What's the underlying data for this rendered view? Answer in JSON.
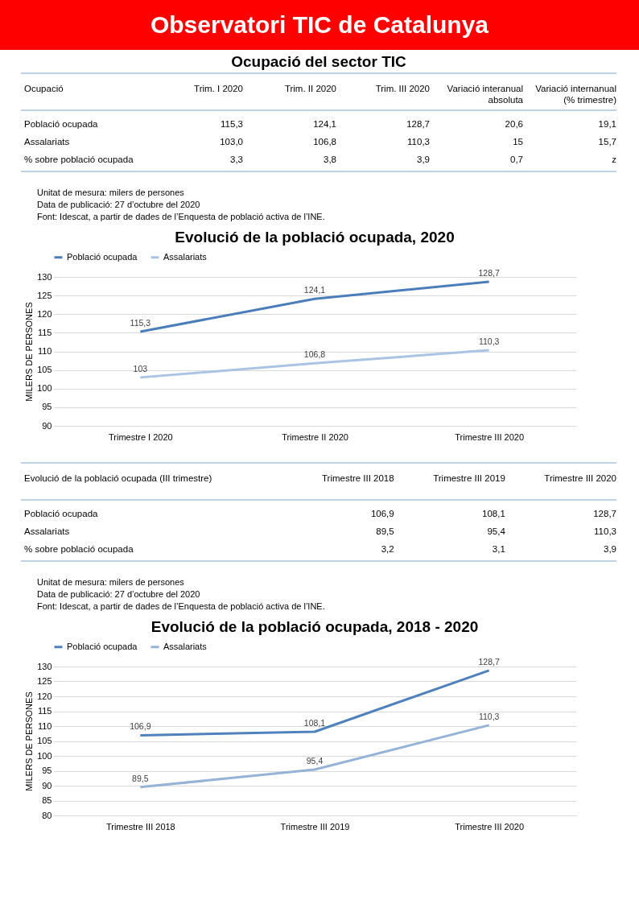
{
  "chart_data": [
    {
      "type": "other",
      "title": "Observatori TIC de Catalunya"
    },
    {
      "type": "other",
      "title": "Ocupació del sector TIC",
      "ylabel": "Ocupació",
      "categories": [
        "Trim. I 2020",
        "Trim. II 2020",
        "Trim. III 2020",
        "Variació interanual absoluta",
        "Variació internanual (% trimestre)"
      ],
      "y_categories": [
        "Població ocupada",
        "Assalariats",
        "% sobre població ocupada"
      ],
      "cell_labels": [
        [
          "115,3",
          "124,1",
          "128,7",
          "20,6",
          "19,1"
        ],
        [
          "103,0",
          "106,8",
          "110,3",
          "15",
          "15,7"
        ],
        [
          "3,3",
          "3,8",
          "3,9",
          "0,7",
          "z"
        ]
      ],
      "annotations": [
        "Unitat de mesura: milers de persones",
        "Data de publicació: 27 d’octubre del 2020",
        "Font: Idescat, a partir de dades de l’Enquesta de població activa de l’INE."
      ]
    },
    {
      "type": "line",
      "title": "Evolució de la població ocupada, 2020",
      "ylabel": "MILERS DE PERSONES",
      "categories": [
        "Trimestre I 2020",
        "Trimestre II 2020",
        "Trimestre III 2020"
      ],
      "series": [
        {
          "name": "Població ocupada",
          "color": "#4a7ebb",
          "values": [
            115.3,
            124.1,
            128.7
          ],
          "value_labels": [
            "115,3",
            "124,1",
            "128,7"
          ]
        },
        {
          "name": "Assalariats",
          "color": "#a9c4e4",
          "values": [
            103,
            106.8,
            110.3
          ],
          "value_labels": [
            "103",
            "106,8",
            "110,3"
          ]
        }
      ],
      "ylim": [
        90,
        130
      ],
      "yticks": [
        90,
        95,
        100,
        105,
        110,
        115,
        120,
        125,
        130
      ],
      "grid": "y",
      "legend": "top",
      "marker": "none"
    },
    {
      "type": "other",
      "ylabel": "Evolució de la població ocupada (III trimestre)",
      "categories": [
        "Trimestre III 2018",
        "Trimestre III 2019",
        "Trimestre III 2020"
      ],
      "y_categories": [
        "Població ocupada",
        "Assalariats",
        "% sobre població ocupada"
      ],
      "cell_labels": [
        [
          "106,9",
          "108,1",
          "128,7"
        ],
        [
          "89,5",
          "95,4",
          "110,3"
        ],
        [
          "3,2",
          "3,1",
          "3,9"
        ]
      ],
      "annotations": [
        "Unitat de mesura: milers de persones",
        "Data de publicació: 27 d’octubre del 2020",
        "Font: Idescat, a partir de dades de l’Enquesta de població activa de l’INE."
      ]
    },
    {
      "type": "line",
      "title": "Evolució de la població ocupada, 2018 - 2020",
      "ylabel": "MILERS DE PERSONES",
      "categories": [
        "Trimestre III 2018",
        "Trimestre III 2019",
        "Trimestre III 2020"
      ],
      "series": [
        {
          "name": "Població ocupada",
          "color": "#4f81bd",
          "values": [
            106.9,
            108.1,
            128.7
          ],
          "value_labels": [
            "106,9",
            "108,1",
            "128,7"
          ]
        },
        {
          "name": "Assalariats",
          "color": "#95b3d7",
          "values": [
            89.5,
            95.4,
            110.3
          ],
          "value_labels": [
            "89,5",
            "95,4",
            "110,3"
          ]
        }
      ],
      "ylim": [
        80,
        130
      ],
      "yticks": [
        80,
        85,
        90,
        95,
        100,
        105,
        110,
        115,
        120,
        125,
        130
      ],
      "grid": "y",
      "legend": "top",
      "marker": "none"
    }
  ]
}
